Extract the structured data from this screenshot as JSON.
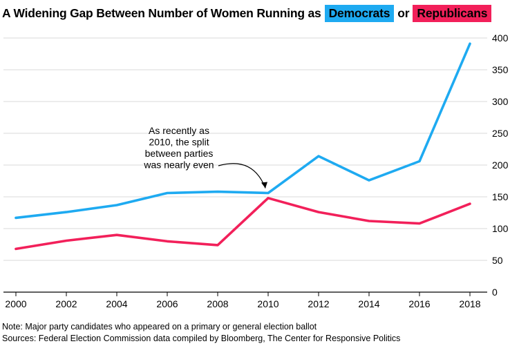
{
  "title": {
    "prefix": "A Widening Gap Between Number of Women Running as",
    "democrats_label": "Democrats",
    "connector": "or",
    "republicans_label": "Republicans"
  },
  "colors": {
    "democrats": "#1eaaf1",
    "republicans": "#f2205a",
    "grid": "#d9d9d9",
    "axis": "#000000"
  },
  "chart_data": {
    "type": "line",
    "title": "A Widening Gap Between Number of Women Running as Democrats or Republicans",
    "x": [
      2000,
      2002,
      2004,
      2006,
      2008,
      2010,
      2012,
      2014,
      2016,
      2018
    ],
    "x_tick_labels": [
      "2000",
      "2002",
      "2004",
      "2006",
      "2008",
      "2010",
      "2012",
      "2014",
      "2016",
      "2018"
    ],
    "y_ticks": [
      0,
      50,
      100,
      150,
      200,
      250,
      300,
      350,
      400
    ],
    "y_tick_labels": [
      "0",
      "50",
      "100",
      "150",
      "200",
      "250",
      "300",
      "350",
      "400"
    ],
    "ylim": [
      0,
      400
    ],
    "xlabel": "",
    "ylabel": "",
    "grid": true,
    "y_axis_position": "right",
    "legend": "in title",
    "series": [
      {
        "name": "Democrats",
        "color": "#1eaaf1",
        "values": [
          117,
          126,
          137,
          156,
          158,
          156,
          214,
          176,
          206,
          391
        ]
      },
      {
        "name": "Republicans",
        "color": "#f2205a",
        "values": [
          68,
          81,
          90,
          80,
          74,
          148,
          126,
          112,
          108,
          139
        ]
      }
    ],
    "annotations": [
      {
        "lines": [
          "As recently as",
          "2010, the split",
          "between parties",
          "was nearly even"
        ],
        "points_to_x": 2010
      }
    ]
  },
  "footer": {
    "note": "Note: Major party candidates who appeared on a primary or general election ballot",
    "sources": "Sources: Federal Election Commission data compiled by Bloomberg, The Center for Responsive Politics"
  }
}
